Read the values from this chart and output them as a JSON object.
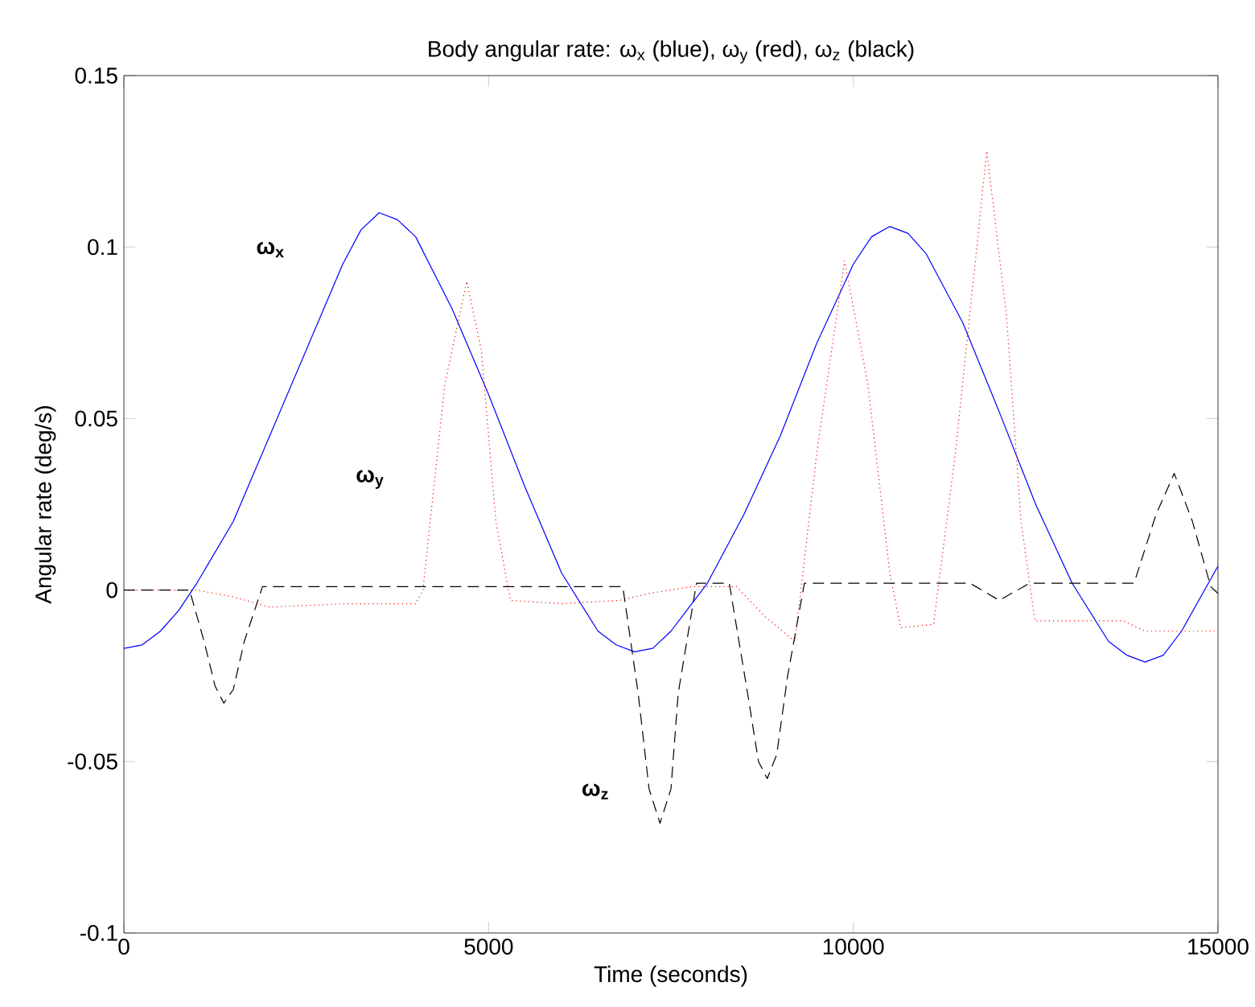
{
  "chart_data": {
    "type": "line",
    "title": "Body angular rate: ω$_{x}$ (blue), ω$_{y}$ (red), ω$_{z}$ (black)",
    "xlabel": "Time (seconds)",
    "ylabel": "Angular rate (deg/s)",
    "xlim": [
      0,
      15000
    ],
    "ylim": [
      -0.1,
      0.15
    ],
    "xticks": [
      0,
      5000,
      10000,
      15000
    ],
    "yticks": [
      -0.1,
      -0.05,
      0,
      0.05,
      0.1,
      0.15
    ],
    "grid": false,
    "marker": "none",
    "series": [
      {
        "name": "ω$_{x}$",
        "color": "#0000ff",
        "line_style": "solid",
        "x": [
          0,
          250,
          500,
          750,
          1000,
          1500,
          2000,
          2500,
          3000,
          3250,
          3500,
          3750,
          4000,
          4500,
          5000,
          5500,
          6000,
          6500,
          6750,
          7000,
          7250,
          7500,
          8000,
          8500,
          9000,
          9500,
          10000,
          10250,
          10500,
          10750,
          11000,
          11500,
          12000,
          12500,
          13000,
          13500,
          13750,
          14000,
          14250,
          14500,
          15000
        ],
        "values": [
          -0.017,
          -0.016,
          -0.012,
          -0.006,
          0.002,
          0.02,
          0.045,
          0.07,
          0.095,
          0.105,
          0.11,
          0.108,
          0.103,
          0.082,
          0.057,
          0.03,
          0.005,
          -0.012,
          -0.016,
          -0.018,
          -0.017,
          -0.012,
          0.002,
          0.022,
          0.045,
          0.072,
          0.095,
          0.103,
          0.106,
          0.104,
          0.098,
          0.078,
          0.052,
          0.025,
          0.002,
          -0.015,
          -0.019,
          -0.021,
          -0.019,
          -0.012,
          0.007
        ]
      },
      {
        "name": "ω$_{y}$",
        "color": "#ff0000",
        "line_style": "dotted",
        "x": [
          0,
          1000,
          1500,
          2000,
          3000,
          4000,
          4100,
          4400,
          4700,
          4900,
          5100,
          5300,
          6000,
          6800,
          7200,
          7800,
          8400,
          8800,
          9200,
          9500,
          9880,
          10200,
          10500,
          10650,
          11100,
          11400,
          11830,
          12100,
          12300,
          12490,
          13700,
          14000,
          15000
        ],
        "values": [
          0,
          0,
          -0.002,
          -0.005,
          -0.004,
          -0.004,
          0.0,
          0.06,
          0.09,
          0.07,
          0.02,
          -0.003,
          -0.004,
          -0.003,
          -0.001,
          0.001,
          0.001,
          -0.008,
          -0.015,
          0.04,
          0.096,
          0.06,
          0.005,
          -0.011,
          -0.01,
          0.04,
          0.128,
          0.08,
          0.02,
          -0.009,
          -0.009,
          -0.012,
          -0.012
        ]
      },
      {
        "name": "ω$_{z}$",
        "color": "#000000",
        "line_style": "dashed",
        "x": [
          0,
          900,
          1100,
          1250,
          1370,
          1500,
          1650,
          1900,
          6840,
          7050,
          7200,
          7350,
          7500,
          7600,
          7850,
          8300,
          8550,
          8700,
          8820,
          8950,
          9100,
          9330,
          11600,
          12000,
          12420,
          13850,
          14150,
          14400,
          14650,
          14900,
          15000
        ],
        "values": [
          0,
          0,
          -0.015,
          -0.028,
          -0.033,
          -0.029,
          -0.015,
          0.001,
          0.001,
          -0.03,
          -0.058,
          -0.068,
          -0.058,
          -0.03,
          0.002,
          0.002,
          -0.03,
          -0.05,
          -0.055,
          -0.048,
          -0.025,
          0.002,
          0.002,
          -0.003,
          0.002,
          0.002,
          0.022,
          0.034,
          0.02,
          0.001,
          -0.001
        ]
      }
    ]
  }
}
